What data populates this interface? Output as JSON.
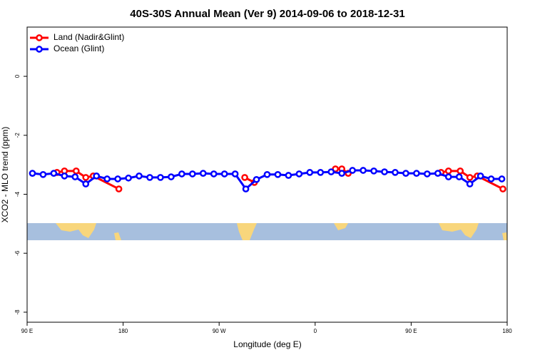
{
  "chart_data": {
    "type": "line",
    "title": "40S-30S Annual Mean (Ver 9)   2014-09-06 to 2018-12-31",
    "x_label": "Longitude (deg E)",
    "y_label": "XCO2 - MLO trend (ppm)",
    "xlim": [
      90,
      540
    ],
    "ylim": [
      -8.34,
      1.67
    ],
    "xticks": [
      {
        "value": 90,
        "label": "90 E"
      },
      180,
      {
        "value": 270,
        "label": "90 W"
      },
      {
        "value": 360,
        "label": "0"
      },
      {
        "value": 450,
        "label": "90 E"
      },
      {
        "value": 540,
        "label": "180"
      }
    ],
    "yticks": [
      0,
      -2,
      -4,
      -6,
      -8
    ],
    "legend": "top-left",
    "series": [
      {
        "name": "Land (Nadir&Glint)",
        "color": "#ff0000",
        "x": [
          118,
          125,
          136,
          145,
          152,
          176,
          null,
          294,
          303,
          null,
          379,
          385,
          391,
          null,
          478,
          485,
          496,
          505,
          512,
          536
        ],
        "values": [
          -3.26,
          -3.21,
          -3.21,
          -3.43,
          -3.38,
          -3.82,
          null,
          -3.43,
          -3.6,
          null,
          -3.14,
          -3.14,
          -3.29,
          null,
          -3.26,
          -3.21,
          -3.21,
          -3.43,
          -3.38,
          -3.82
        ]
      },
      {
        "name": "Ocean (Glint)",
        "color": "#0000ff",
        "x": [
          95,
          105,
          115,
          125,
          135,
          145,
          155,
          165,
          175,
          185,
          195,
          205,
          215,
          225,
          235,
          245,
          255,
          265,
          275,
          285,
          295,
          305,
          315,
          325,
          335,
          345,
          355,
          365,
          375,
          385,
          395,
          405,
          415,
          425,
          435,
          445,
          455,
          465,
          475,
          485,
          495,
          505,
          515,
          525,
          535
        ],
        "values": [
          -3.29,
          -3.33,
          -3.29,
          -3.38,
          -3.41,
          -3.65,
          -3.38,
          -3.48,
          -3.48,
          -3.45,
          -3.38,
          -3.43,
          -3.43,
          -3.41,
          -3.31,
          -3.31,
          -3.29,
          -3.31,
          -3.31,
          -3.31,
          -3.82,
          -3.5,
          -3.33,
          -3.33,
          -3.36,
          -3.31,
          -3.26,
          -3.26,
          -3.24,
          -3.29,
          -3.19,
          -3.19,
          -3.21,
          -3.24,
          -3.26,
          -3.29,
          -3.29,
          -3.31,
          -3.29,
          -3.41,
          -3.41,
          -3.65,
          -3.38,
          -3.48,
          -3.48
        ]
      }
    ]
  }
}
